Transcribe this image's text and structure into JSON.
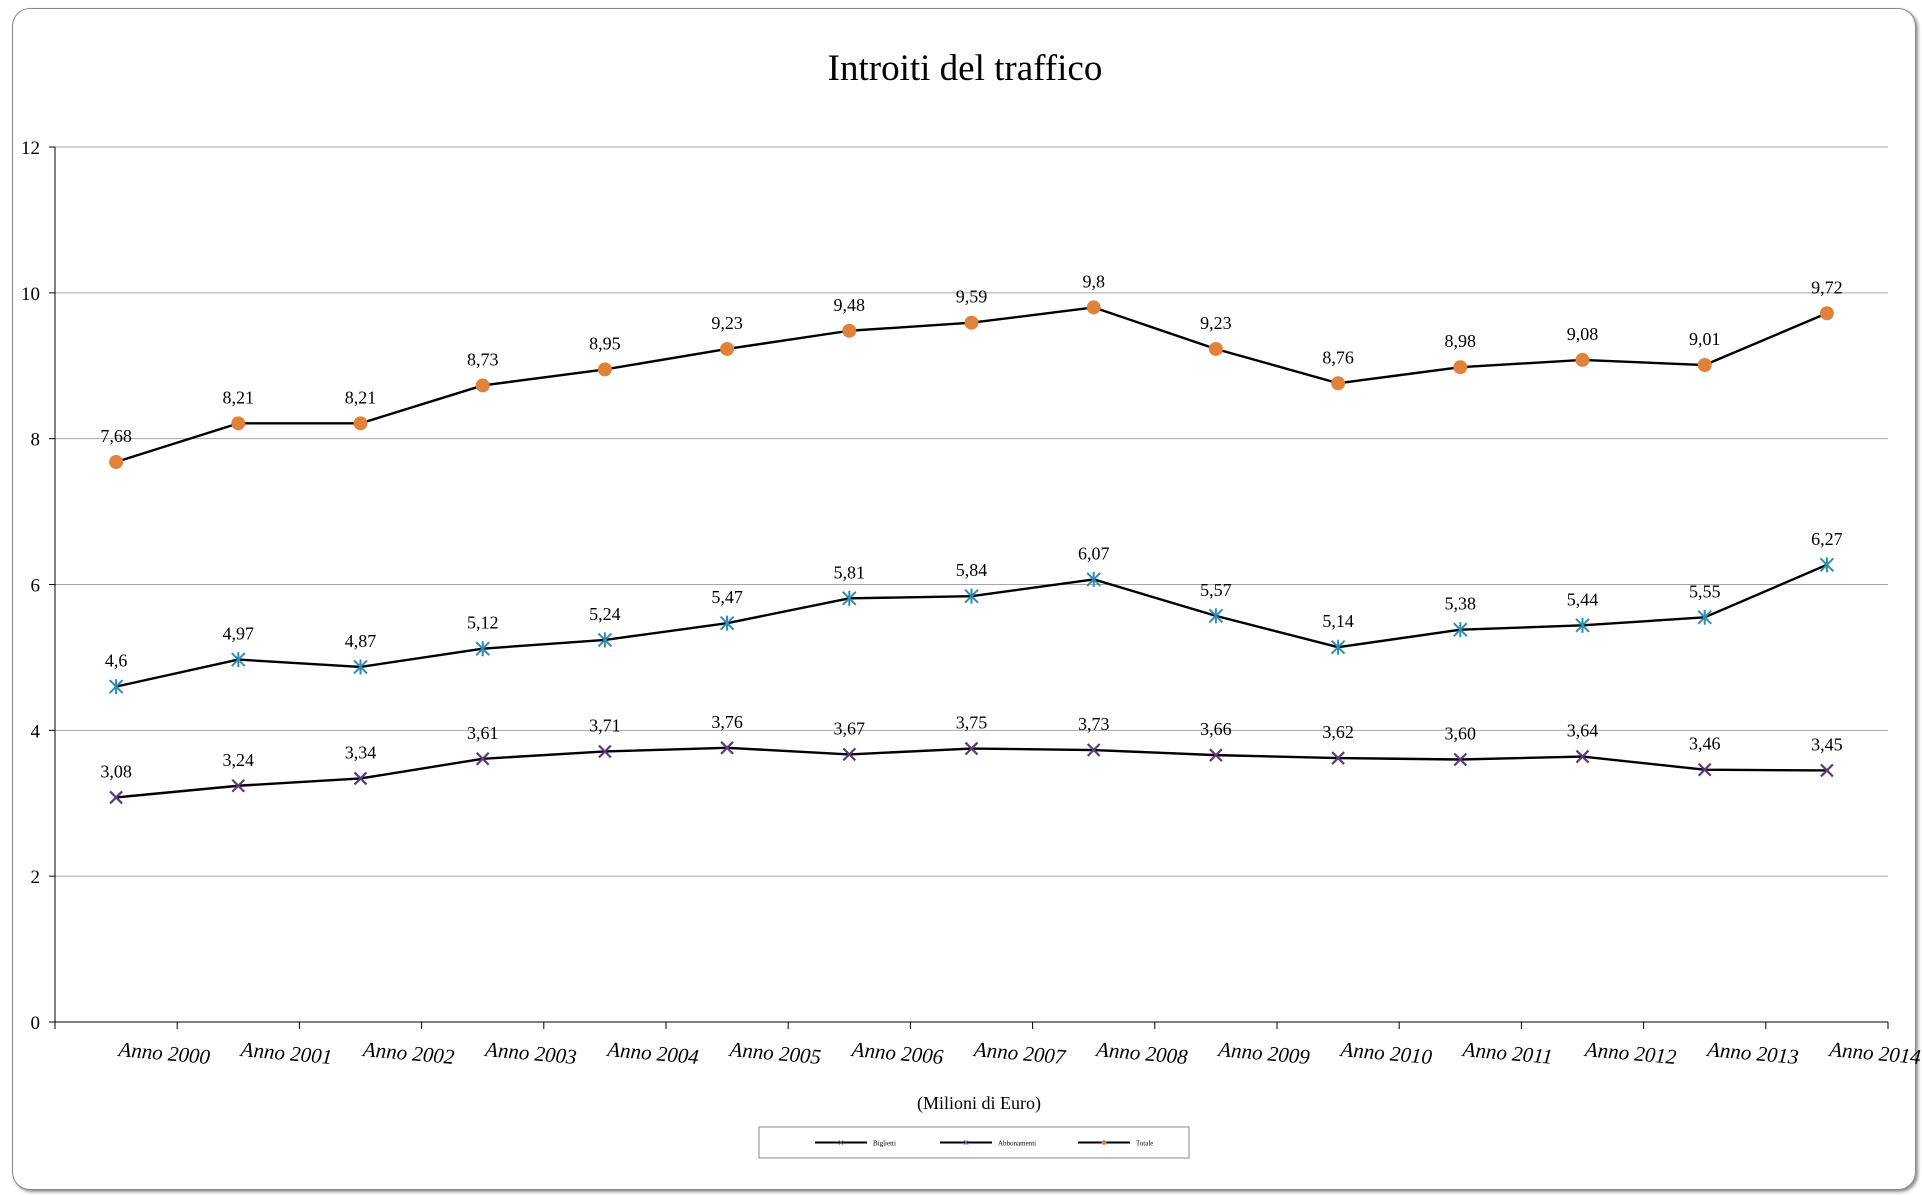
{
  "chart_data": {
    "type": "line",
    "title": "Introiti del traffico",
    "xlabel": "(Milioni di Euro)",
    "ylabel": "",
    "ylim": [
      0,
      12
    ],
    "yticks": [
      0,
      2,
      4,
      6,
      8,
      10,
      12
    ],
    "grid": true,
    "legend_position": "bottom",
    "categories": [
      "Anno 2000",
      "Anno 2001",
      "Anno 2002",
      "Anno 2003",
      "Anno 2004",
      "Anno 2005",
      "Anno 2006",
      "Anno 2007",
      "Anno 2008",
      "Anno 2009",
      "Anno 2010",
      "Anno 2011",
      "Anno 2012",
      "Anno 2013",
      "Anno 2014"
    ],
    "series": [
      {
        "name": "Biglietti",
        "marker": "x",
        "color": "#5b3a7a",
        "values": [
          3.08,
          3.24,
          3.34,
          3.61,
          3.71,
          3.76,
          3.67,
          3.75,
          3.73,
          3.66,
          3.62,
          3.6,
          3.64,
          3.46,
          3.45
        ],
        "labels": [
          "3,08",
          "3,24",
          "3,34",
          "3,61",
          "3,71",
          "3,76",
          "3,67",
          "3,75",
          "3,73",
          "3,66",
          "3,62",
          "3,60",
          "3,64",
          "3,46",
          "3,45"
        ]
      },
      {
        "name": "Abbonamenti",
        "marker": "star",
        "color": "#2e8cb0",
        "values": [
          4.6,
          4.97,
          4.87,
          5.12,
          5.24,
          5.47,
          5.81,
          5.84,
          6.07,
          5.57,
          5.14,
          5.38,
          5.44,
          5.55,
          6.27
        ],
        "labels": [
          "4,6",
          "4,97",
          "4,87",
          "5,12",
          "5,24",
          "5,47",
          "5,81",
          "5,84",
          "6,07",
          "5,57",
          "5,14",
          "5,38",
          "5,44",
          "5,55",
          "6,27"
        ]
      },
      {
        "name": "Totale",
        "marker": "circle",
        "color": "#e0823a",
        "values": [
          7.68,
          8.21,
          8.21,
          8.73,
          8.95,
          9.23,
          9.48,
          9.59,
          9.8,
          9.23,
          8.76,
          8.98,
          9.08,
          9.01,
          9.72
        ],
        "labels": [
          "7,68",
          "8,21",
          "8,21",
          "8,73",
          "8,95",
          "9,23",
          "9,48",
          "9,59",
          "9,8",
          "9,23",
          "8,76",
          "8,98",
          "9,08",
          "9,01",
          "9,72"
        ]
      }
    ],
    "line_color": "#000000",
    "grid_color": "#a6a6a6"
  }
}
